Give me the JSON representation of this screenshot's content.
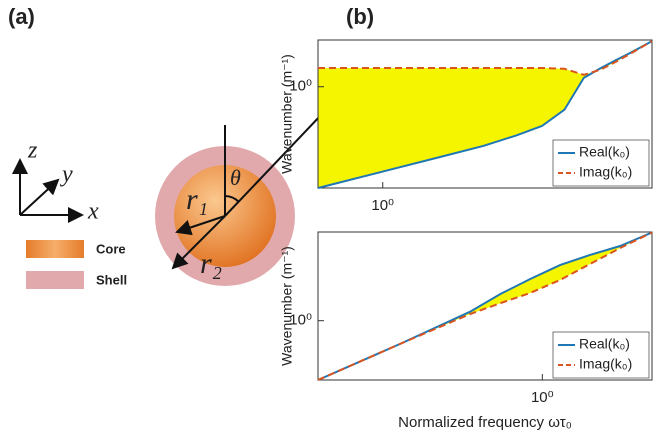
{
  "panel_a": {
    "label": "(a)",
    "axis_z": "z",
    "axis_y": "y",
    "axis_x": "x",
    "core": "Core",
    "shell": "Shell",
    "theta": "θ",
    "r1": "r₁",
    "r2": "r₂"
  },
  "panel_b_label": "(b)",
  "chart_data": [
    {
      "type": "line",
      "ylabel": "Wavenumber (m⁻¹)",
      "log_x": true,
      "log_y": true,
      "xlim": [
        0.64,
        6.4
      ],
      "ylim": [
        0.15,
        2.4
      ],
      "xticks": [
        {
          "value": 1,
          "label": "10⁰"
        }
      ],
      "yticks": [
        {
          "value": 1,
          "label": "10⁰"
        }
      ],
      "x": [
        0.64,
        1,
        1.5,
        2,
        2.5,
        3,
        3.5,
        4,
        4.5,
        5,
        5.5,
        6.4
      ],
      "series": [
        {
          "name": "Real(k₀)",
          "color": "#1f77b4",
          "dashed": false,
          "values": [
            0.15,
            0.204,
            0.27,
            0.33,
            0.4,
            0.48,
            0.65,
            1.18,
            1.42,
            1.65,
            1.88,
            2.35
          ]
        },
        {
          "name": "Imag(k₀)",
          "color": "#d9541e",
          "dashed": true,
          "values": [
            1.42,
            1.42,
            1.42,
            1.42,
            1.42,
            1.42,
            1.4,
            1.25,
            1.38,
            1.6,
            1.85,
            2.35
          ]
        }
      ],
      "fill_between": "#f5f500",
      "legend": "lower right"
    },
    {
      "type": "line",
      "ylabel": "Wavenumber (m⁻¹)",
      "xlabel": "Normalized frequency ωτ₀",
      "log_x": true,
      "log_y": true,
      "xlim": [
        0.213,
        2.13
      ],
      "ylim": [
        0.33,
        5.25
      ],
      "xticks": [
        {
          "value": 1,
          "label": "10⁰"
        }
      ],
      "yticks": [
        {
          "value": 1,
          "label": "10⁰"
        }
      ],
      "x": [
        0.213,
        0.376,
        0.607,
        0.75,
        0.92,
        1.13,
        1.39,
        1.71,
        2.13
      ],
      "series": [
        {
          "name": "Real(k₀)",
          "color": "#1f77b4",
          "dashed": false,
          "values": [
            0.33,
            0.65,
            1.18,
            1.65,
            2.18,
            2.83,
            3.42,
            4.04,
            5.2
          ]
        },
        {
          "name": "Imag(k₀)",
          "color": "#d9541e",
          "dashed": true,
          "values": [
            0.33,
            0.65,
            1.13,
            1.39,
            1.68,
            2.14,
            2.89,
            3.89,
            5.2
          ]
        }
      ],
      "fill_between": "#f5f500",
      "legend": "lower right"
    }
  ]
}
